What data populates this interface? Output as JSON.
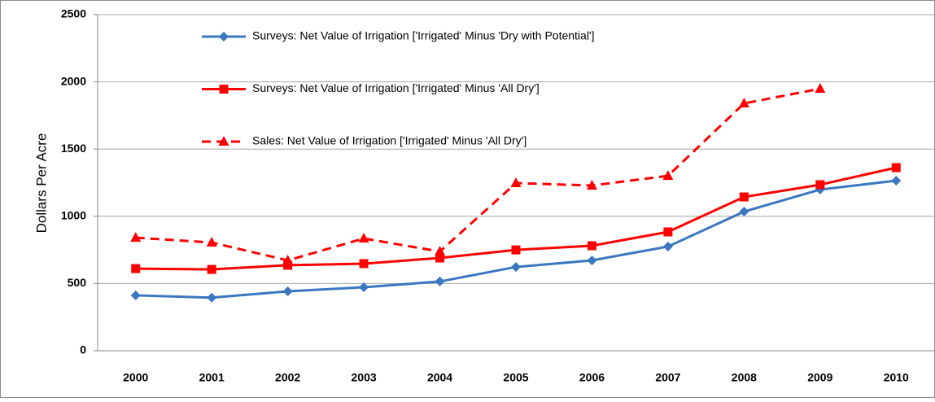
{
  "chart_data": {
    "type": "line",
    "y_label": "Dollars Per Acre",
    "categories": [
      "2000",
      "2001",
      "2002",
      "2003",
      "2004",
      "2005",
      "2006",
      "2007",
      "2008",
      "2009",
      "2010"
    ],
    "series": [
      {
        "name": "Surveys: Net Value of Irrigation ['Irrigated' Minus 'Dry with Potential']",
        "color": "#3a77c0",
        "marker": "diamond",
        "dashed": false,
        "values": [
          412,
          395,
          442,
          472,
          515,
          623,
          672,
          775,
          1035,
          1199,
          1265
        ]
      },
      {
        "name": "Surveys: Net Value of Irrigation ['Irrigated' Minus 'All Dry']",
        "color": "#ff0000",
        "marker": "square",
        "dashed": false,
        "values": [
          611,
          605,
          636,
          648,
          690,
          750,
          781,
          884,
          1144,
          1235,
          1362
        ]
      },
      {
        "name": "Sales: Net Value of Irrigation ['Irrigated' Minus 'All Dry']",
        "color": "#ff0000",
        "marker": "triangle",
        "dashed": true,
        "values": [
          841,
          805,
          672,
          835,
          738,
          1247,
          1229,
          1301,
          1840,
          1949,
          null
        ]
      }
    ],
    "ylim": [
      0,
      2500
    ],
    "yticks": [
      0,
      500,
      1000,
      1500,
      2000,
      2500
    ],
    "grid": true,
    "legend": "top"
  }
}
